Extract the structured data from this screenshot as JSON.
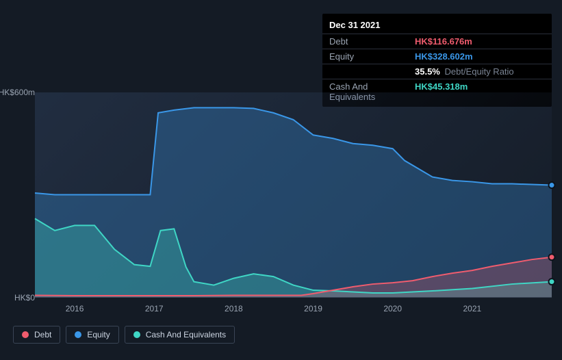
{
  "tooltip": {
    "date": "Dec 31 2021",
    "rows": [
      {
        "label": "Debt",
        "value": "HK$116.676m",
        "color": "#f05c6e"
      },
      {
        "label": "Equity",
        "value": "HK$328.602m",
        "color": "#3a97e8"
      },
      {
        "label": "",
        "value": "35.5%",
        "sub": "Debt/Equity Ratio",
        "color": "#ffffff"
      },
      {
        "label": "Cash And Equivalents",
        "value": "HK$45.318m",
        "color": "#3fd6c5"
      }
    ]
  },
  "chart": {
    "type": "area",
    "background_color": "#141b25",
    "grid_color": "#3a4556",
    "ylim": [
      0,
      600
    ],
    "y_ticks": [
      {
        "v": 600,
        "label": "HK$600m"
      },
      {
        "v": 0,
        "label": "HK$0"
      }
    ],
    "x_ticks": [
      "2016",
      "2017",
      "2018",
      "2019",
      "2020",
      "2021"
    ],
    "x_domain": [
      2015.5,
      2022.0
    ],
    "series": [
      {
        "name": "Equity",
        "color": "#3a97e8",
        "fill": "rgba(58,151,232,0.30)",
        "line_width": 2,
        "points": [
          [
            2015.5,
            305
          ],
          [
            2015.75,
            300
          ],
          [
            2016.0,
            300
          ],
          [
            2016.25,
            300
          ],
          [
            2016.5,
            300
          ],
          [
            2016.75,
            300
          ],
          [
            2016.95,
            300
          ],
          [
            2017.05,
            540
          ],
          [
            2017.25,
            548
          ],
          [
            2017.5,
            555
          ],
          [
            2017.75,
            555
          ],
          [
            2018.0,
            555
          ],
          [
            2018.25,
            553
          ],
          [
            2018.5,
            540
          ],
          [
            2018.75,
            520
          ],
          [
            2019.0,
            475
          ],
          [
            2019.25,
            465
          ],
          [
            2019.5,
            450
          ],
          [
            2019.75,
            445
          ],
          [
            2020.0,
            435
          ],
          [
            2020.15,
            400
          ],
          [
            2020.5,
            352
          ],
          [
            2020.75,
            342
          ],
          [
            2021.0,
            338
          ],
          [
            2021.25,
            332
          ],
          [
            2021.5,
            332
          ],
          [
            2021.75,
            330
          ],
          [
            2022.0,
            328
          ]
        ]
      },
      {
        "name": "Cash And Equivalents",
        "color": "#3fd6c5",
        "fill": "rgba(63,214,197,0.30)",
        "line_width": 2,
        "points": [
          [
            2015.5,
            230
          ],
          [
            2015.75,
            195
          ],
          [
            2016.0,
            210
          ],
          [
            2016.25,
            210
          ],
          [
            2016.5,
            140
          ],
          [
            2016.75,
            95
          ],
          [
            2016.95,
            90
          ],
          [
            2017.08,
            195
          ],
          [
            2017.25,
            200
          ],
          [
            2017.4,
            88
          ],
          [
            2017.5,
            45
          ],
          [
            2017.75,
            35
          ],
          [
            2018.0,
            55
          ],
          [
            2018.25,
            68
          ],
          [
            2018.5,
            60
          ],
          [
            2018.75,
            35
          ],
          [
            2019.0,
            20
          ],
          [
            2019.25,
            18
          ],
          [
            2019.5,
            15
          ],
          [
            2019.75,
            12
          ],
          [
            2020.0,
            12
          ],
          [
            2020.5,
            18
          ],
          [
            2021.0,
            25
          ],
          [
            2021.5,
            38
          ],
          [
            2022.0,
            45
          ]
        ]
      },
      {
        "name": "Debt",
        "color": "#f05c6e",
        "fill": "rgba(240,92,110,0.26)",
        "line_width": 2,
        "points": [
          [
            2015.5,
            5
          ],
          [
            2016.0,
            4
          ],
          [
            2016.5,
            4
          ],
          [
            2017.0,
            4
          ],
          [
            2017.5,
            4
          ],
          [
            2018.0,
            5
          ],
          [
            2018.5,
            5
          ],
          [
            2018.85,
            5
          ],
          [
            2019.0,
            10
          ],
          [
            2019.25,
            20
          ],
          [
            2019.5,
            30
          ],
          [
            2019.75,
            38
          ],
          [
            2020.0,
            42
          ],
          [
            2020.25,
            48
          ],
          [
            2020.5,
            60
          ],
          [
            2020.75,
            70
          ],
          [
            2021.0,
            78
          ],
          [
            2021.25,
            90
          ],
          [
            2021.5,
            100
          ],
          [
            2021.75,
            110
          ],
          [
            2022.0,
            117
          ]
        ]
      }
    ]
  },
  "legend": [
    {
      "label": "Debt",
      "color": "#f05c6e"
    },
    {
      "label": "Equity",
      "color": "#3a97e8"
    },
    {
      "label": "Cash And Equivalents",
      "color": "#3fd6c5"
    }
  ]
}
